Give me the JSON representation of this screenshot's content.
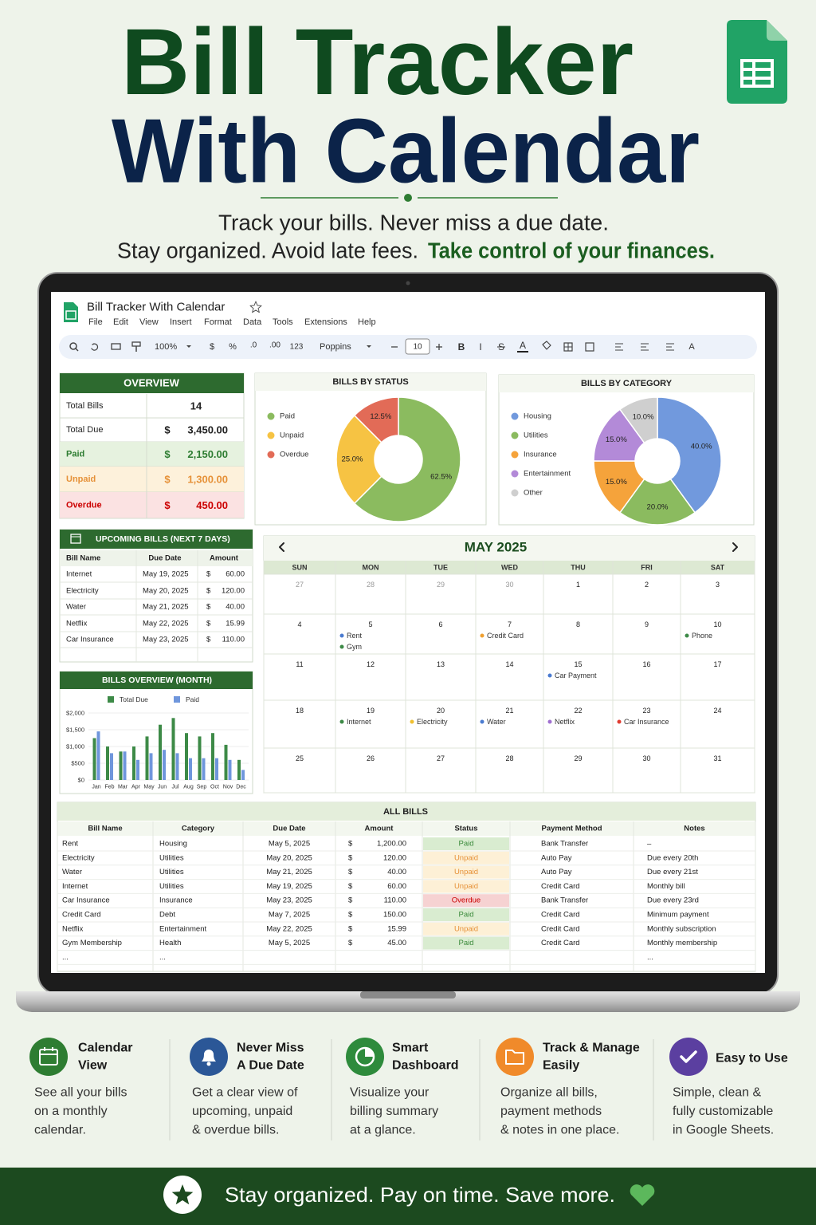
{
  "header": {
    "title_line1": "Bill Tracker",
    "title_line2": "With Calendar",
    "tagline1": "Track your bills. Never miss a due date.",
    "tagline2": "Stay organized. Avoid late fees.",
    "tagline2_emphasis": "Take control of your finances."
  },
  "sheet": {
    "doc_title": "Bill Tracker With Calendar",
    "menu": [
      "File",
      "Edit",
      "View",
      "Insert",
      "Format",
      "Data",
      "Tools",
      "Extensions",
      "Help"
    ],
    "toolbar": {
      "zoom": "100%",
      "currency": "$",
      "percent": "%",
      "decrease_decimals": ".0",
      "increase_decimals": ".00",
      "number_formats": "123",
      "font": "Poppins",
      "font_size": 10,
      "bold": "B",
      "italic": "I",
      "strike": "S",
      "text_color": "A",
      "text_rotation": "A"
    }
  },
  "overview": {
    "title": "OVERVIEW",
    "rows": [
      {
        "label": "Total Bills",
        "value": 14
      },
      {
        "label": "Total Due",
        "currency": "$",
        "value": "3,450.00"
      },
      {
        "label": "Paid",
        "currency": "$",
        "value": "2,150.00",
        "bg": "#e6f2df",
        "fg": "#2e7d32"
      },
      {
        "label": "Unpaid",
        "currency": "$",
        "value": "1,300.00",
        "bg": "#fdf1db",
        "fg": "#e69138"
      },
      {
        "label": "Overdue",
        "currency": "$",
        "value": "450.00",
        "bg": "#fbe2e2",
        "fg": "#cc0000"
      }
    ]
  },
  "bills_by_status": {
    "type": "pie",
    "title": "BILLS BY STATUS",
    "categories": [
      "Paid",
      "Unpaid",
      "Overdue"
    ],
    "values": [
      62.5,
      25,
      12.5
    ],
    "value_labels": [
      "62.5%",
      "25.0%",
      "12.5%"
    ],
    "colors": [
      "#8bbb5f",
      "#f6c343",
      "#e26b57"
    ]
  },
  "bills_by_category": {
    "type": "pie",
    "title": "BILLS BY CATEGORY",
    "categories": [
      "Housing",
      "Utilities",
      "Insurance",
      "Entertainment",
      "Other"
    ],
    "values": [
      40,
      20,
      15,
      15,
      10
    ],
    "value_labels": [
      "40.0%",
      "20.0%",
      "15.0%",
      "15.0%",
      "10.0%"
    ],
    "colors": [
      "#7199dd",
      "#8bbb5f",
      "#f5a33b",
      "#b38ad8",
      "#cfcfcf"
    ]
  },
  "upcoming": {
    "title": "UPCOMING BILLS (NEXT 7 DAYS)",
    "columns": [
      "Bill Name",
      "Due Date",
      "Amount"
    ],
    "rows": [
      {
        "name": "Internet",
        "date": "May 19, 2025",
        "currency": "$",
        "amount": "60.00"
      },
      {
        "name": "Electricity",
        "date": "May 20, 2025",
        "currency": "$",
        "amount": "120.00"
      },
      {
        "name": "Water",
        "date": "May 21, 2025",
        "currency": "$",
        "amount": "40.00"
      },
      {
        "name": "Netflix",
        "date": "May 22, 2025",
        "currency": "$",
        "amount": "15.99"
      },
      {
        "name": "Car Insurance",
        "date": "May 23, 2025",
        "currency": "$",
        "amount": "110.00"
      }
    ]
  },
  "bills_overview": {
    "type": "bar",
    "title": "BILLS OVERVIEW (MONTH)",
    "categories": [
      "Jan",
      "Feb",
      "Mar",
      "Apr",
      "May",
      "Jun",
      "Jul",
      "Aug",
      "Sep",
      "Oct",
      "Nov",
      "Dec"
    ],
    "series": [
      {
        "name": "Total Due",
        "color": "#3d8a47",
        "values": [
          1250,
          1000,
          850,
          1000,
          1300,
          1650,
          1850,
          1400,
          1300,
          1400,
          1050,
          600
        ]
      },
      {
        "name": "Paid",
        "color": "#6f96dc",
        "values": [
          1450,
          800,
          850,
          600,
          800,
          900,
          800,
          650,
          650,
          650,
          600,
          300
        ]
      }
    ],
    "ylim": [
      0,
      2000
    ],
    "yticks": [
      {
        "value": 0,
        "label": "$0"
      },
      {
        "value": 500,
        "label": "$500"
      },
      {
        "value": 1000,
        "label": "$1,000"
      },
      {
        "value": 1500,
        "label": "$1,500"
      },
      {
        "value": 2000,
        "label": "$2,000"
      }
    ]
  },
  "calendar": {
    "month": "MAY 2025",
    "weekdays": [
      "SUN",
      "MON",
      "TUE",
      "WED",
      "THU",
      "FRI",
      "SAT"
    ],
    "weeks": [
      [
        {
          "day": 27,
          "muted": true
        },
        {
          "day": 28,
          "muted": true
        },
        {
          "day": 29,
          "muted": true
        },
        {
          "day": 30,
          "muted": true
        },
        {
          "day": 1
        },
        {
          "day": 2
        },
        {
          "day": 3
        }
      ],
      [
        {
          "day": 4
        },
        {
          "day": 5,
          "events": [
            {
              "label": "Rent",
              "color": "#4a7bd0"
            },
            {
              "label": "Gym",
              "color": "#3d8a47"
            }
          ]
        },
        {
          "day": 6
        },
        {
          "day": 7,
          "events": [
            {
              "label": "Credit Card",
              "color": "#f0a030"
            }
          ]
        },
        {
          "day": 8
        },
        {
          "day": 9
        },
        {
          "day": 10,
          "events": [
            {
              "label": "Phone",
              "color": "#3d8a47"
            }
          ]
        }
      ],
      [
        {
          "day": 11
        },
        {
          "day": 12
        },
        {
          "day": 13
        },
        {
          "day": 14
        },
        {
          "day": 15,
          "events": [
            {
              "label": "Car Payment",
              "color": "#4a7bd0"
            }
          ]
        },
        {
          "day": 16
        },
        {
          "day": 17
        }
      ],
      [
        {
          "day": 18
        },
        {
          "day": 19,
          "events": [
            {
              "label": "Internet",
              "color": "#3d8a47"
            }
          ]
        },
        {
          "day": 20,
          "events": [
            {
              "label": "Electricity",
              "color": "#f0c030"
            }
          ]
        },
        {
          "day": 21,
          "events": [
            {
              "label": "Water",
              "color": "#4a7bd0"
            }
          ]
        },
        {
          "day": 22,
          "events": [
            {
              "label": "Netflix",
              "color": "#a070d0"
            }
          ]
        },
        {
          "day": 23,
          "events": [
            {
              "label": "Car Insurance",
              "color": "#e03c31"
            }
          ]
        },
        {
          "day": 24
        }
      ],
      [
        {
          "day": 25
        },
        {
          "day": 26
        },
        {
          "day": 27
        },
        {
          "day": 28
        },
        {
          "day": 29
        },
        {
          "day": 30
        },
        {
          "day": 31
        }
      ]
    ]
  },
  "all_bills": {
    "title": "ALL BILLS",
    "columns": [
      "Bill Name",
      "Category",
      "Due Date",
      "Amount",
      "Status",
      "Payment Method",
      "Notes"
    ],
    "status_styles": {
      "Paid": {
        "bg": "#d9ecd0",
        "fg": "#3a8a3a"
      },
      "Unpaid": {
        "bg": "#fdf0d6",
        "fg": "#e69138"
      },
      "Overdue": {
        "bg": "#f6d2d2",
        "fg": "#cc0000"
      }
    },
    "rows": [
      {
        "name": "Rent",
        "category": "Housing",
        "date": "May 5, 2025",
        "currency": "$",
        "amount": "1,200.00",
        "status": "Paid",
        "method": "Bank Transfer",
        "notes": "–"
      },
      {
        "name": "Electricity",
        "category": "Utilities",
        "date": "May 20, 2025",
        "currency": "$",
        "amount": "120.00",
        "status": "Unpaid",
        "method": "Auto Pay",
        "notes": "Due every 20th"
      },
      {
        "name": "Water",
        "category": "Utilities",
        "date": "May 21, 2025",
        "currency": "$",
        "amount": "40.00",
        "status": "Unpaid",
        "method": "Auto Pay",
        "notes": "Due every 21st"
      },
      {
        "name": "Internet",
        "category": "Utilities",
        "date": "May 19, 2025",
        "currency": "$",
        "amount": "60.00",
        "status": "Unpaid",
        "method": "Credit Card",
        "notes": "Monthly bill"
      },
      {
        "name": "Car Insurance",
        "category": "Insurance",
        "date": "May 23, 2025",
        "currency": "$",
        "amount": "110.00",
        "status": "Overdue",
        "method": "Bank Transfer",
        "notes": "Due every 23rd"
      },
      {
        "name": "Credit Card",
        "category": "Debt",
        "date": "May 7, 2025",
        "currency": "$",
        "amount": "150.00",
        "status": "Paid",
        "method": "Credit Card",
        "notes": "Minimum payment"
      },
      {
        "name": "Netflix",
        "category": "Entertainment",
        "date": "May 22, 2025",
        "currency": "$",
        "amount": "15.99",
        "status": "Unpaid",
        "method": "Credit Card",
        "notes": "Monthly subscription"
      },
      {
        "name": "Gym Membership",
        "category": "Health",
        "date": "May 5, 2025",
        "currency": "$",
        "amount": "45.00",
        "status": "Paid",
        "method": "Credit Card",
        "notes": "Monthly membership"
      },
      {
        "name": "...",
        "category": "...",
        "notes": "..."
      }
    ]
  },
  "features": [
    {
      "title_lines": [
        "Calendar",
        "View"
      ],
      "text_lines": [
        "See all your bills",
        "on a monthly",
        "calendar."
      ],
      "color": "#2e7d32"
    },
    {
      "title_lines": [
        "Never Miss",
        "A Due Date"
      ],
      "text_lines": [
        "Get a clear view of",
        "upcoming, unpaid",
        "& overdue bills."
      ],
      "color": "#2b5797"
    },
    {
      "title_lines": [
        "Smart",
        "Dashboard"
      ],
      "text_lines": [
        "Visualize your",
        "billing summary",
        "at a glance."
      ],
      "color": "#2e8b3c"
    },
    {
      "title_lines": [
        "Track & Manage",
        "Easily"
      ],
      "text_lines": [
        "Organize all bills,",
        "payment methods",
        "& notes in one place."
      ],
      "color": "#f08a2a"
    },
    {
      "title_lines": [
        "Easy to Use"
      ],
      "text_lines": [
        "Simple, clean &",
        "fully customizable",
        "in Google Sheets."
      ],
      "color": "#5b3fa0"
    }
  ],
  "footer": {
    "text": "Stay organized. Pay on time. Save more."
  }
}
